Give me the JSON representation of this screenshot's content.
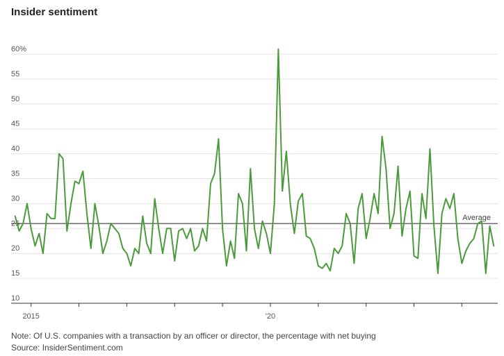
{
  "title": "Insider sentiment",
  "note": "Note: Of U.S. companies with a transaction by an officer or director, the percentage with net buying",
  "source": "Source: InsiderSentiment.com",
  "chart_data": {
    "type": "line",
    "title": "Insider sentiment",
    "xlabel": "",
    "ylabel": "",
    "ylim": [
      10,
      62
    ],
    "yticks": [
      10,
      15,
      20,
      25,
      30,
      35,
      40,
      45,
      50,
      55,
      60
    ],
    "ytick_labels": [
      "10",
      "15",
      "20",
      "25",
      "30",
      "35",
      "40",
      "45",
      "50",
      "55",
      "60%"
    ],
    "xlim": [
      "2014-08",
      "2024-10"
    ],
    "xtick_labels": [
      {
        "x": "2015-01",
        "label": "2015"
      },
      {
        "x": "2020-01",
        "label": "'20"
      }
    ],
    "grid": true,
    "line_color": "#4a9a3b",
    "average": {
      "value": 26,
      "label": "Average"
    },
    "series": [
      {
        "x_start": "2014-09",
        "frequency": "monthly",
        "values": [
          27.5,
          24.5,
          26,
          30,
          25,
          21.5,
          24,
          20,
          28,
          27,
          27,
          40,
          39,
          24.5,
          30,
          34.5,
          34,
          36.5,
          28,
          21,
          30,
          25.5,
          20,
          22.5,
          26,
          25,
          24,
          21,
          20,
          17.5,
          21,
          20,
          27.5,
          22,
          20,
          31,
          25,
          20,
          25,
          25,
          18.5,
          24.5,
          25,
          23,
          25,
          20.5,
          21.5,
          25,
          22.5,
          34,
          36,
          43,
          25,
          17.5,
          22.5,
          19,
          32,
          30,
          20.5,
          37,
          25,
          21,
          26.5,
          24,
          20,
          30,
          61,
          32.5,
          40.5,
          30,
          24,
          30.5,
          32,
          23.5,
          23,
          21,
          17.5,
          17,
          18,
          16.5,
          21,
          20,
          21.5,
          28,
          26,
          18,
          29,
          32,
          23,
          27,
          32,
          28,
          43.5,
          37,
          25,
          28,
          37.5,
          23.5,
          29,
          32.5,
          19.5,
          19,
          32,
          27,
          41,
          25.5,
          16,
          28,
          31,
          29,
          32,
          23,
          18,
          20.5,
          22,
          23,
          26,
          26.5,
          16,
          25.5,
          21.5
        ]
      }
    ]
  }
}
